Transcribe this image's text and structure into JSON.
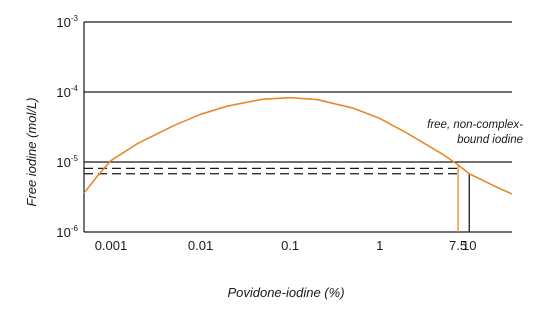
{
  "chart_data": {
    "type": "line",
    "xlabel": "Povidone-iodine (%)",
    "ylabel": "Free iodine (mol/L)",
    "x_scale": "log",
    "y_scale": "log",
    "xlim": [
      0.0005,
      30
    ],
    "ylim": [
      1e-06,
      0.001
    ],
    "grid": "horizontal",
    "x_ticks": [
      {
        "value": 0.001,
        "label": "0.001"
      },
      {
        "value": 0.01,
        "label": "0.01"
      },
      {
        "value": 0.1,
        "label": "0.1"
      },
      {
        "value": 1,
        "label": "1"
      },
      {
        "value": 7.5,
        "label": "7.5"
      },
      {
        "value": 10,
        "label": "10"
      }
    ],
    "y_ticks": [
      {
        "value": 1e-06,
        "base": "10",
        "exp": "-6"
      },
      {
        "value": 1e-05,
        "base": "10",
        "exp": "-5"
      },
      {
        "value": 0.0001,
        "base": "10",
        "exp": "-4"
      },
      {
        "value": 0.001,
        "base": "10",
        "exp": "-3"
      }
    ],
    "series": [
      {
        "color": "#e8892f",
        "x": [
          0.0005,
          0.0007,
          0.001,
          0.002,
          0.005,
          0.01,
          0.02,
          0.05,
          0.1,
          0.2,
          0.5,
          1,
          2,
          5,
          7.5,
          10,
          20,
          30
        ],
        "y": [
          3.6e-06,
          6.2e-06,
          1.05e-05,
          1.85e-05,
          3.3e-05,
          4.8e-05,
          6.3e-05,
          7.9e-05,
          8.3e-05,
          7.8e-05,
          5.9e-05,
          4.2e-05,
          2.6e-05,
          1.3e-05,
          9.1e-06,
          6.8e-06,
          4.4e-06,
          3.5e-06
        ]
      }
    ],
    "reference_lines": [
      {
        "style": "dashed",
        "y": 8.1e-06
      },
      {
        "style": "dashed",
        "y": 6.8e-06
      }
    ],
    "drop_lines": [
      {
        "color": "#e8892f",
        "x": 7.5
      },
      {
        "color": "#1a1a1a",
        "x": 10
      }
    ],
    "annotation": {
      "lines": [
        "free, non-complex-",
        "bound iodine"
      ]
    }
  }
}
